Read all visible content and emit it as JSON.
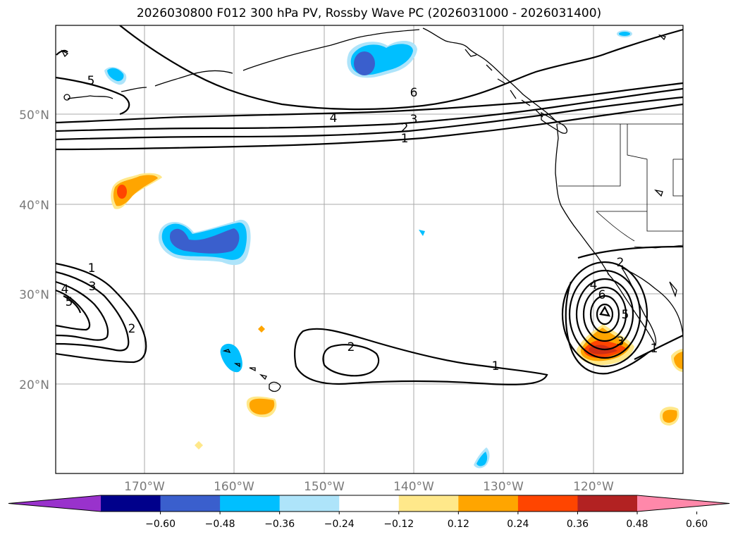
{
  "title": "2026030800 F012 300 hPa PV, Rossby Wave PC (2026031000 - 2026031400)",
  "lat_labels": [
    "50°N",
    "40°N",
    "30°N",
    "20°N"
  ],
  "lon_labels": [
    "170°W",
    "160°W",
    "150°W",
    "140°W",
    "130°W",
    "120°W"
  ],
  "contour_labels": [
    "5",
    "6",
    "4",
    "3",
    "2",
    "1",
    "1",
    "3",
    "4",
    "5",
    "2",
    "2",
    "1",
    "2",
    "4",
    "6",
    "5",
    "3",
    "1"
  ],
  "colorbar": {
    "ticks": [
      "−0.60",
      "−0.48",
      "−0.36",
      "−0.24",
      "−0.12",
      "0.12",
      "0.24",
      "0.36",
      "0.48",
      "0.60"
    ],
    "colors": [
      "#9932cc",
      "#00008b",
      "#3a5fcd",
      "#00bfff",
      "#aee4fa",
      "#ffffff",
      "#ffe88a",
      "#ffa500",
      "#ff4500",
      "#b22222",
      "#ff88aa"
    ]
  },
  "colors": {
    "neg_strong": "#3a5fcd",
    "neg_mid": "#00bfff",
    "neg_weak": "#aee4fa",
    "pos_weak": "#ffe88a",
    "pos_mid": "#ffa500",
    "pos_strong": "#ff4500"
  }
}
